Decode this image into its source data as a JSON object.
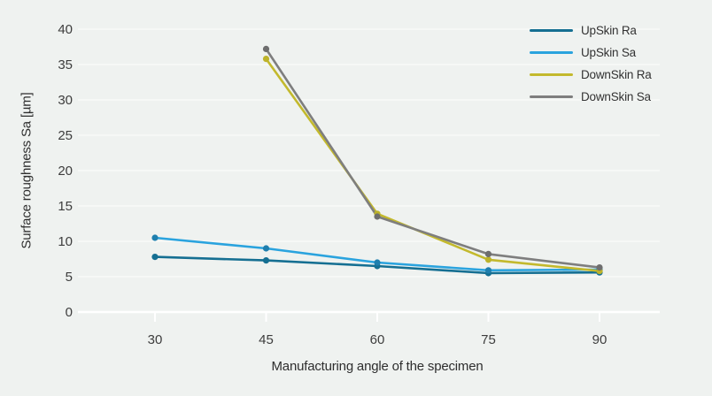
{
  "chart_data": {
    "type": "line",
    "x": [
      30,
      45,
      60,
      75,
      90
    ],
    "x_tick_labels": [
      "30",
      "45",
      "60",
      "75",
      "90"
    ],
    "y_ticks": [
      0,
      5,
      10,
      15,
      20,
      25,
      30,
      35,
      40
    ],
    "ylim": [
      0,
      40
    ],
    "xlabel": "Manufacturing angle of the specimen",
    "ylabel": "Surface roughness Sa [µm]",
    "grid": true,
    "legend_position": "top-right",
    "series": [
      {
        "name": "UpSkin Ra",
        "color": "#156f92",
        "marker_color": "#156f92",
        "values": [
          7.8,
          7.3,
          6.5,
          5.5,
          5.6
        ]
      },
      {
        "name": "UpSkin Sa",
        "color": "#2aa3de",
        "marker_color": "#1f7fae",
        "values": [
          10.5,
          9.0,
          7.0,
          5.9,
          6.0
        ]
      },
      {
        "name": "DownSkin Ra",
        "color": "#c3b92d",
        "marker_color": "#bdb32a",
        "values": [
          null,
          35.8,
          13.9,
          7.4,
          5.8
        ]
      },
      {
        "name": "DownSkin Sa",
        "color": "#7e7e7e",
        "marker_color": "#6e6e6e",
        "values": [
          null,
          37.2,
          13.5,
          8.2,
          6.3
        ]
      }
    ],
    "colors": {
      "background": "#eff2f0",
      "gridline": "#fafbfa",
      "axis_line": "#ffffff",
      "tick_text": "#3d3d3d",
      "axis_title_text": "#2e2e2e"
    }
  }
}
